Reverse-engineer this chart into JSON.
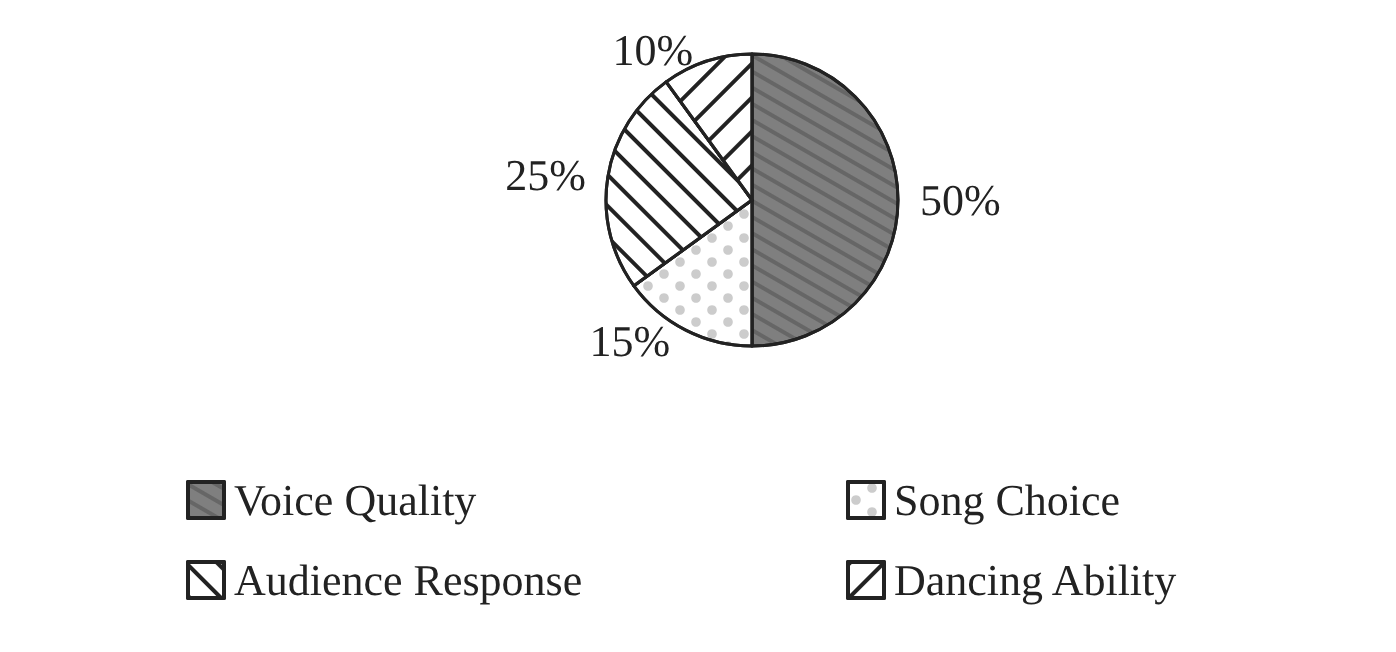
{
  "chart_data": {
    "type": "pie",
    "categories": [
      "Voice Quality",
      "Song Choice",
      "Audience Response",
      "Dancing Ability"
    ],
    "values": [
      50,
      15,
      25,
      10
    ],
    "colors": [
      "#7f7f7f",
      "#ffffff",
      "#ffffff",
      "#ffffff"
    ],
    "value_labels": [
      "50%",
      "15%",
      "25%",
      "10%"
    ],
    "legend": "bottom"
  }
}
